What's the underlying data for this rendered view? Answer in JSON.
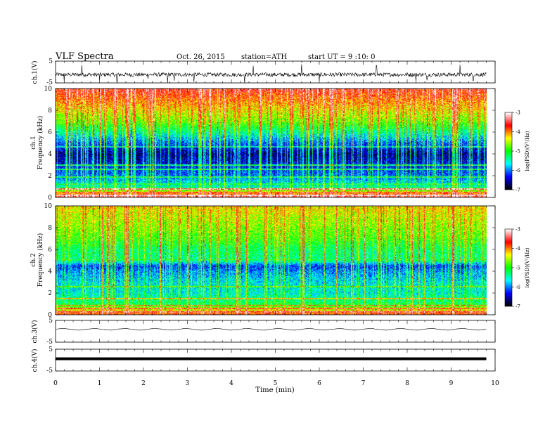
{
  "header": {
    "title": "VLF  Spectra",
    "date": "Oct. 26, 2015",
    "station": "station=ATH",
    "start": "start  UT  =   9  :10: 0"
  },
  "x_axis": {
    "label": "Time  (min)",
    "range": [
      0,
      10
    ],
    "ticks": [
      "0",
      "1",
      "2",
      "3",
      "4",
      "5",
      "6",
      "7",
      "8",
      "9",
      "10"
    ]
  },
  "colormap": [
    "#000000",
    "#0000ff",
    "#00ffff",
    "#00ff00",
    "#ffff00",
    "#ff0000",
    "#ffffff"
  ],
  "chart_data": [
    {
      "type": "line",
      "id": "ch1",
      "ylabel": "ch.1(V)",
      "ylim": [
        -5,
        5
      ],
      "yticks": [
        "5",
        "-5"
      ],
      "x_range": [
        0,
        9.8
      ],
      "baseline": -1.2,
      "noise": 0.9,
      "spikes": [
        {
          "x": 0.2,
          "y": -4.4
        },
        {
          "x": 0.6,
          "y": 3.2
        },
        {
          "x": 1.0,
          "y": -3.6
        },
        {
          "x": 1.4,
          "y": -4.5
        },
        {
          "x": 2.1,
          "y": -3.0
        },
        {
          "x": 2.55,
          "y": -5.0
        },
        {
          "x": 2.7,
          "y": -4.0
        },
        {
          "x": 3.15,
          "y": -4.6
        },
        {
          "x": 4.3,
          "y": -5.0
        },
        {
          "x": 4.5,
          "y": 2.8
        },
        {
          "x": 5.6,
          "y": 3.5
        },
        {
          "x": 6.0,
          "y": -4.0
        },
        {
          "x": 7.3,
          "y": 3.0
        },
        {
          "x": 8.2,
          "y": -4.2
        },
        {
          "x": 8.45,
          "y": -3.8
        },
        {
          "x": 9.2,
          "y": 3.3
        },
        {
          "x": 9.5,
          "y": -4.0
        }
      ]
    },
    {
      "type": "heatmap",
      "id": "spec1",
      "ylabel_top": "ch.1",
      "ylabel_bottom": "Frequency  (kHz)",
      "ylim": [
        0,
        10
      ],
      "yticks": [
        "10",
        "8",
        "6",
        "4",
        "2",
        "0"
      ],
      "x_range": [
        0,
        9.8
      ],
      "value_label": "log(PSD)(V²/Hz)",
      "value_range": [
        -7,
        -3
      ],
      "value_ticks": [
        "-3",
        "-4",
        "-5",
        "-6",
        "-7"
      ],
      "profile": [
        {
          "f": 0,
          "v": -3.4
        },
        {
          "f": 0.4,
          "v": -4.2
        },
        {
          "f": 1.0,
          "v": -5.6
        },
        {
          "f": 2.0,
          "v": -6.2
        },
        {
          "f": 3.0,
          "v": -6.5
        },
        {
          "f": 4.0,
          "v": -6.8
        },
        {
          "f": 5.0,
          "v": -6.3
        },
        {
          "f": 6.0,
          "v": -5.6
        },
        {
          "f": 7.0,
          "v": -4.9
        },
        {
          "f": 8.0,
          "v": -4.5
        },
        {
          "f": 9.0,
          "v": -4.1
        },
        {
          "f": 10.0,
          "v": -3.7
        }
      ],
      "lines_khz": [
        {
          "f": 0.2,
          "v": -3.2
        },
        {
          "f": 0.5,
          "v": -3.9
        },
        {
          "f": 0.8,
          "v": -3.5
        },
        {
          "f": 1.25,
          "v": -5.3
        },
        {
          "f": 1.9,
          "v": -5.4
        },
        {
          "f": 2.6,
          "v": -5.5
        },
        {
          "f": 3.0,
          "v": -5.5
        },
        {
          "f": 4.7,
          "v": -5.8
        }
      ],
      "event_rate": 0.3
    },
    {
      "type": "heatmap",
      "id": "spec2",
      "ylabel_top": "ch.2",
      "ylabel_bottom": "Frequency  (kHz)",
      "ylim": [
        0,
        10
      ],
      "yticks": [
        "10",
        "8",
        "6",
        "4",
        "2",
        "0"
      ],
      "x_range": [
        0,
        9.8
      ],
      "value_label": "log(PSD)(V²/Hz)",
      "value_range": [
        -7,
        -3
      ],
      "value_ticks": [
        "-3",
        "-4",
        "-5",
        "-6",
        "-7"
      ],
      "profile": [
        {
          "f": 0,
          "v": -3.8
        },
        {
          "f": 0.4,
          "v": -4.4
        },
        {
          "f": 1.0,
          "v": -5.3
        },
        {
          "f": 2.0,
          "v": -5.7
        },
        {
          "f": 3.0,
          "v": -5.8
        },
        {
          "f": 4.0,
          "v": -6.1
        },
        {
          "f": 4.5,
          "v": -6.4
        },
        {
          "f": 5.0,
          "v": -5.5
        },
        {
          "f": 6.0,
          "v": -5.4
        },
        {
          "f": 7.0,
          "v": -5.0
        },
        {
          "f": 8.0,
          "v": -4.8
        },
        {
          "f": 9.0,
          "v": -4.6
        },
        {
          "f": 10.0,
          "v": -4.4
        }
      ],
      "lines_khz": [
        {
          "f": 0.3,
          "v": -3.6
        },
        {
          "f": 0.6,
          "v": -3.9
        },
        {
          "f": 0.9,
          "v": -4.0
        },
        {
          "f": 1.5,
          "v": -4.4
        },
        {
          "f": 2.6,
          "v": -5.0
        },
        {
          "f": 5.1,
          "v": -5.2
        }
      ],
      "event_rate": 0.22
    },
    {
      "type": "line",
      "id": "ch3",
      "ylabel": "ch.3(V)",
      "ylim": [
        -5,
        5
      ],
      "yticks": [
        "5",
        "-5"
      ],
      "x_range": [
        0,
        9.8
      ],
      "baseline": 0.9,
      "noise": 0.15,
      "spikes": []
    },
    {
      "type": "line",
      "id": "ch4",
      "ylabel": "ch.4(V)",
      "ylim": [
        -5,
        5
      ],
      "yticks": [
        "5",
        "-5"
      ],
      "x_range": [
        0,
        9.8
      ],
      "baseline": 0.6,
      "noise": 0.0,
      "thick": true,
      "spikes": []
    }
  ]
}
